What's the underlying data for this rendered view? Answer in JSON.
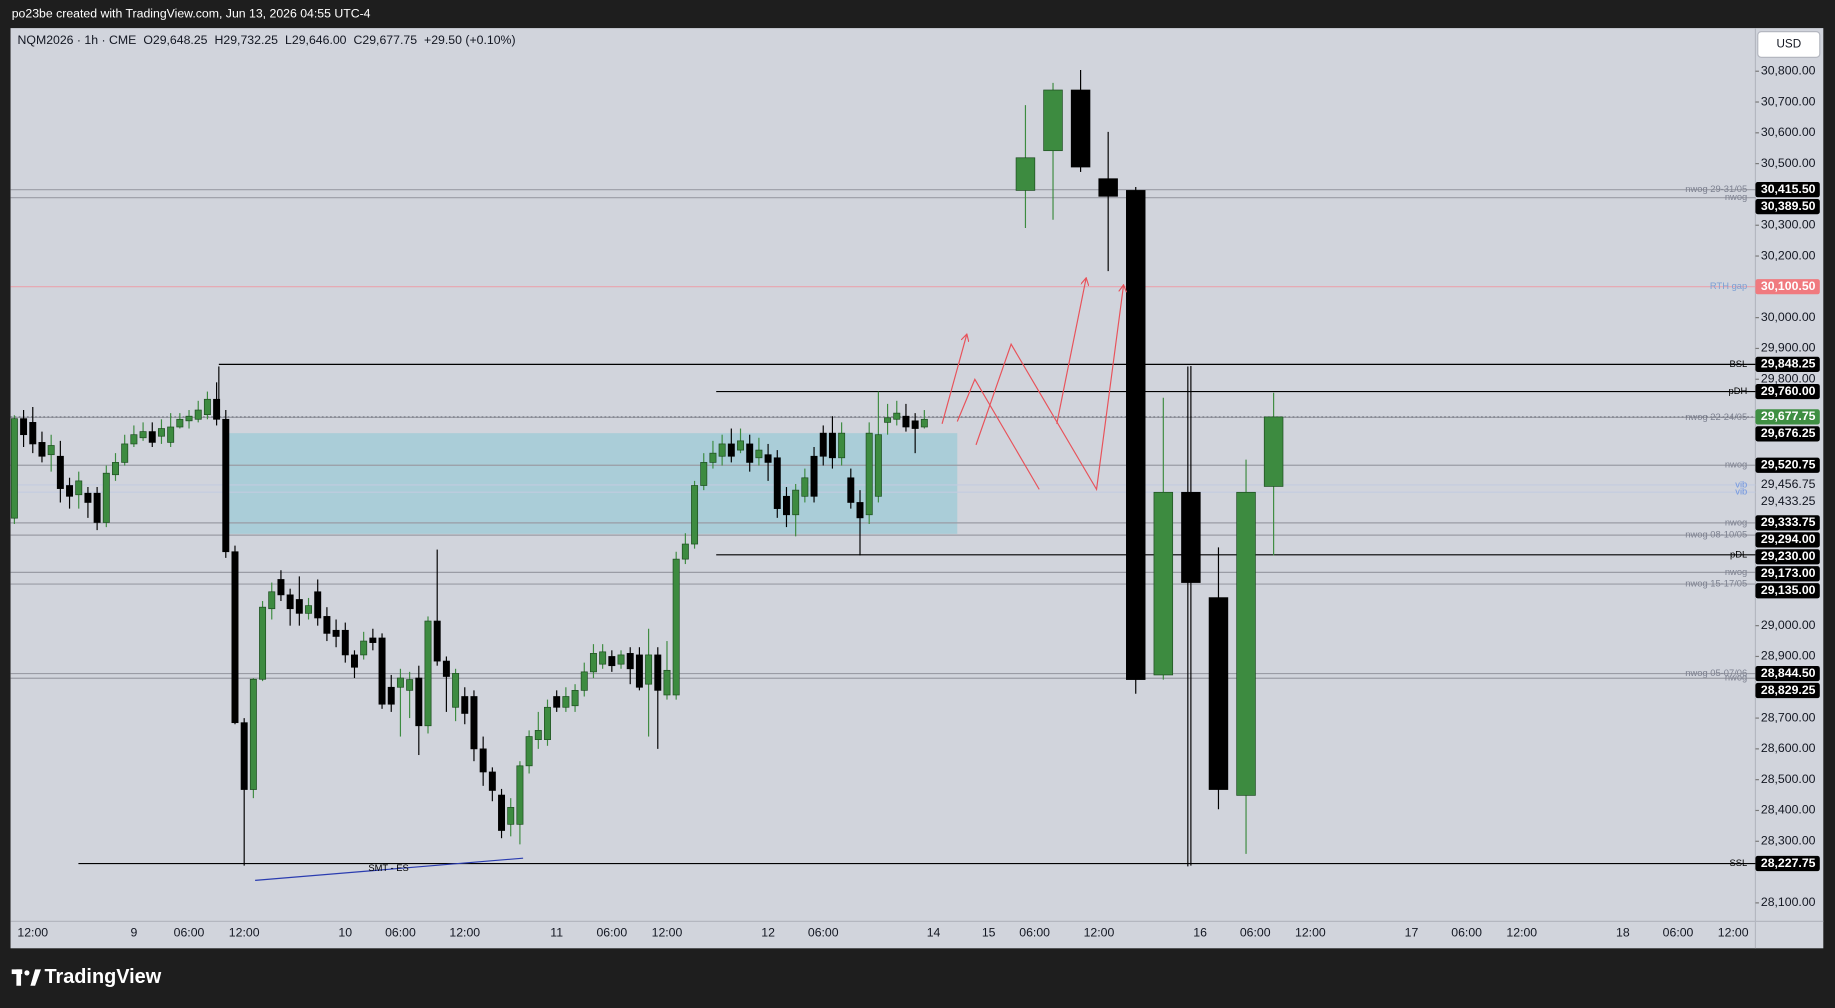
{
  "page": {
    "caption": "po23be created with TradingView.com, Jun 13, 2026 04:55 UTC-4",
    "brand": "TradingView",
    "currency": "USD"
  },
  "chart_data": {
    "type": "candlestick",
    "title": "NQM2026 · 1h · CME",
    "ohlc": [
      "O29,648.25",
      "H29,732.25",
      "L29,646.00",
      "C29,677.75",
      "+29.50 (+0.10%)"
    ],
    "annotations": [
      "SMT - ES"
    ],
    "up_color": "#3d8b40",
    "down_color": "#000000",
    "ylim": [
      28040,
      30940
    ],
    "yticks": [
      {
        "value": 28100,
        "label": "28,100.00"
      },
      {
        "value": 28300,
        "label": "28,300.00"
      },
      {
        "value": 28400,
        "label": "28,400.00"
      },
      {
        "value": 28500,
        "label": "28,500.00"
      },
      {
        "value": 28600,
        "label": "28,600.00"
      },
      {
        "value": 28700,
        "label": "28,700.00"
      },
      {
        "value": 28900,
        "label": "28,900.00"
      },
      {
        "value": 29000,
        "label": "29,000.00"
      },
      {
        "value": 29800,
        "label": "29,800.00"
      },
      {
        "value": 29900,
        "label": "29,900.00"
      },
      {
        "value": 30000,
        "label": "30,000.00"
      },
      {
        "value": 30200,
        "label": "30,200.00"
      },
      {
        "value": 30300,
        "label": "30,300.00"
      },
      {
        "value": 30500,
        "label": "30,500.00"
      },
      {
        "value": 30600,
        "label": "30,600.00"
      },
      {
        "value": 30700,
        "label": "30,700.00"
      },
      {
        "value": 30800,
        "label": "30,800.00"
      }
    ],
    "last_price": {
      "value": 29677.75,
      "label": "29,677.75",
      "box": "#3f8f43"
    },
    "levels": [
      {
        "name": "nwog 29-31/05",
        "value": 30415.5,
        "label": "30,415.50",
        "color": "#9a9ca5",
        "text_color": "#7d8190",
        "box": "#000000"
      },
      {
        "name": "nwog",
        "value": 30389.5,
        "label": "30,389.50",
        "color": "#9a9ca5",
        "text_color": "#7d8190",
        "box": "#000000"
      },
      {
        "name": "RTH gap",
        "value": 30100.5,
        "label": "30,100.50",
        "color": "#e8a4ae",
        "text_color": "#7b9fd4",
        "box": "#f07a7f"
      },
      {
        "name": "BSL",
        "value": 29848.25,
        "label": "29,848.25",
        "color": "#000000",
        "text_color": "#000000",
        "box": "#000000"
      },
      {
        "name": "pDH",
        "value": 29760,
        "label": "29,760.00",
        "color": "#000000",
        "text_color": "#000000",
        "box": "#000000"
      },
      {
        "name": "nwog 22-24/05",
        "value": 29676.25,
        "label": "29,676.25",
        "color": "#9a9ca5",
        "text_color": "#7d8190",
        "box": "#000000"
      },
      {
        "name": "nwog",
        "value": 29520.75,
        "label": "29,520.75",
        "color": "#9a9ca5",
        "text_color": "#7d8190",
        "box": "#000000"
      },
      {
        "name": "vib",
        "value": 29456.75,
        "label": "29,456.75",
        "color": "#c2cbe0",
        "text_color": "#6f95e0"
      },
      {
        "name": "vib",
        "value": 29433.25,
        "label": "29,433.25",
        "color": "#c2cbe0",
        "text_color": "#6f95e0"
      },
      {
        "name": "nwog",
        "value": 29333.75,
        "label": "29,333.75",
        "color": "#9a9ca5",
        "text_color": "#7d8190",
        "box": "#000000"
      },
      {
        "name": "nwog 08-10/05",
        "value": 29294,
        "label": "29,294.00",
        "color": "#9a9ca5",
        "text_color": "#7d8190",
        "box": "#000000"
      },
      {
        "name": "pDL",
        "value": 29230,
        "label": "29,230.00",
        "color": "#000000",
        "text_color": "#000000",
        "box": "#000000"
      },
      {
        "name": "nwog",
        "value": 29173,
        "label": "29,173.00",
        "color": "#9a9ca5",
        "text_color": "#7d8190",
        "box": "#000000"
      },
      {
        "name": "nwog 15-17/05",
        "value": 29135,
        "label": "29,135.00",
        "color": "#9a9ca5",
        "text_color": "#7d8190",
        "box": "#000000"
      },
      {
        "name": "nwog 05-07/06",
        "value": 28844.5,
        "label": "28,844.50",
        "color": "#9a9ca5",
        "text_color": "#7d8190",
        "box": "#000000"
      },
      {
        "name": "nwog",
        "value": 28829.25,
        "label": "28,829.25",
        "color": "#9a9ca5",
        "text_color": "#7d8190",
        "box": "#000000"
      },
      {
        "name": "SSL",
        "value": 28227.75,
        "label": "28,227.75",
        "color": "#000000",
        "text_color": "#000000",
        "box": "#000000"
      }
    ],
    "categories": [
      null,
      null,
      "12:00",
      null,
      null,
      null,
      null,
      null,
      null,
      null,
      null,
      null,
      null,
      "9",
      null,
      null,
      null,
      null,
      null,
      "06:00",
      null,
      null,
      null,
      null,
      null,
      "12:00",
      null,
      null,
      null,
      null,
      null,
      null,
      null,
      null,
      null,
      null,
      "10",
      null,
      null,
      null,
      null,
      null,
      "06:00",
      null,
      null,
      null,
      null,
      null,
      null,
      "12:00",
      null,
      null,
      null,
      null,
      null,
      null,
      null,
      null,
      null,
      "11",
      null,
      null,
      null,
      null,
      null,
      "06:00",
      null,
      null,
      null,
      null,
      null,
      "12:00",
      null,
      null,
      null,
      null,
      null,
      null,
      null,
      null,
      null,
      null,
      "12",
      null,
      null,
      null,
      null,
      null,
      "06:00",
      null,
      null,
      null,
      null,
      null,
      null,
      null,
      null,
      null,
      null,
      null,
      "14",
      null,
      null,
      null,
      null,
      null,
      "15",
      null,
      null,
      null,
      null,
      "06:00",
      null,
      null,
      null,
      null,
      null,
      null,
      "12:00",
      null,
      null,
      null,
      null,
      null,
      null,
      null,
      null,
      null,
      null,
      "16",
      null,
      null,
      null,
      null,
      null,
      "06:00",
      null,
      null,
      null,
      null,
      null,
      "12:00",
      null,
      null,
      null,
      null,
      null,
      null,
      null,
      null,
      null,
      null,
      "17",
      null,
      null,
      null,
      null,
      null,
      "06:00",
      null,
      null,
      null,
      null,
      null,
      "12:00",
      null,
      null,
      null,
      null,
      null,
      null,
      null,
      null,
      null,
      null,
      "18",
      null,
      null,
      null,
      null,
      null,
      "06:00",
      null,
      null,
      null,
      null,
      null,
      "12:00",
      null,
      null
    ],
    "open": [
      29349,
      29672,
      29660,
      29595,
      29555,
      29550,
      29455,
      29425,
      29430,
      29430,
      29335,
      29490,
      29530,
      29590,
      29610,
      29630,
      29615,
      29595,
      29645,
      29665,
      29670,
      29685,
      29735,
      29670,
      29240,
      28685,
      28468,
      28826,
      29055,
      29150,
      29100,
      29085,
      29040,
      29110,
      29030,
      28985,
      28985,
      28905,
      28905,
      28960,
      28960,
      28800,
      28800,
      28790,
      28830,
      28675,
      29015,
      28885,
      28735,
      28770,
      28770,
      28600,
      28525,
      28450,
      28355,
      28355,
      28545,
      28630,
      28630,
      28770,
      28735,
      28740,
      28790,
      28850,
      28875,
      28900,
      28875,
      28910,
      28905,
      28810,
      28905,
      28775,
      28775,
      29216,
      29265,
      29455,
      29530,
      29550,
      29590,
      29570,
      29590,
      29545,
      29555,
      29545,
      29420,
      29360,
      29420,
      29550,
      29625,
      29625,
      29545,
      29480,
      29400,
      29360,
      29420,
      29660,
      29670,
      29680,
      29665,
      29645,
      null,
      null,
      null,
      null,
      null,
      null,
      null,
      null,
      null,
      null,
      30413,
      null,
      null,
      30542,
      null,
      null,
      30739,
      null,
      null,
      30451,
      null,
      null,
      30413,
      null,
      null,
      28840,
      null,
      null,
      29433,
      null,
      null,
      29091,
      null,
      null,
      28449,
      null,
      null,
      29452,
      null,
      null,
      null,
      null,
      null,
      null,
      null,
      null,
      null,
      null,
      null,
      null,
      null,
      null,
      null,
      null,
      null,
      null,
      null,
      null,
      null,
      null,
      null,
      null,
      null,
      null,
      null,
      null,
      null,
      null,
      null,
      null,
      null,
      null,
      null,
      null,
      null,
      null,
      null,
      null,
      null,
      null,
      null,
      null,
      null,
      null,
      null,
      null,
      null,
      null,
      null,
      null
    ],
    "high": [
      29683,
      29700,
      29710,
      29630,
      29620,
      29600,
      29480,
      29500,
      29450,
      29450,
      29520,
      29560,
      29620,
      29650,
      29660,
      29660,
      29670,
      29690,
      29690,
      29700,
      29730,
      29760,
      29790,
      29700,
      29260,
      28700,
      28830,
      29080,
      29140,
      29180,
      29120,
      29160,
      29090,
      29150,
      29060,
      29020,
      29010,
      28920,
      28980,
      28990,
      28975,
      28840,
      28860,
      28850,
      28870,
      29030,
      29247,
      28900,
      28860,
      28800,
      28790,
      28640,
      28540,
      28470,
      28440,
      28560,
      28660,
      28720,
      28760,
      28790,
      28800,
      28810,
      28880,
      28940,
      28940,
      28920,
      28920,
      28930,
      28930,
      28990,
      28930,
      28950,
      29240,
      29300,
      29470,
      29560,
      29600,
      29620,
      29640,
      29640,
      29620,
      29610,
      29590,
      29570,
      29450,
      29460,
      29510,
      29580,
      29650,
      29680,
      29660,
      29510,
      29440,
      29660,
      29760,
      29720,
      29730,
      29720,
      29690,
      29700,
      null,
      null,
      null,
      null,
      null,
      null,
      null,
      null,
      null,
      null,
      30690,
      null,
      null,
      30762,
      null,
      null,
      30804,
      null,
      null,
      30603,
      null,
      null,
      30424,
      null,
      null,
      29740,
      null,
      null,
      29843,
      null,
      null,
      29254,
      null,
      null,
      29539,
      null,
      null,
      29756,
      null,
      null,
      null,
      null,
      null,
      null,
      null,
      null,
      null,
      null,
      null,
      null,
      null,
      null,
      null,
      null,
      null,
      null,
      null,
      null,
      null,
      null,
      null,
      null,
      null,
      null,
      null,
      null,
      null,
      null,
      null,
      null,
      null,
      null,
      null,
      null,
      null,
      null,
      null,
      null,
      null,
      null,
      null,
      null,
      null,
      null,
      null,
      null,
      null,
      null,
      null,
      null
    ],
    "low": [
      29330,
      29580,
      29560,
      29530,
      29500,
      29400,
      29380,
      29380,
      29350,
      29310,
      29320,
      29470,
      29520,
      29580,
      29600,
      29580,
      29590,
      29580,
      29640,
      29640,
      29660,
      29670,
      29650,
      29220,
      28680,
      28221,
      28440,
      28820,
      29020,
      29080,
      29000,
      29000,
      29020,
      29000,
      28950,
      28930,
      28880,
      28830,
      28890,
      28920,
      28730,
      28720,
      28640,
      28700,
      28580,
      28650,
      28870,
      28720,
      28690,
      28680,
      28560,
      28480,
      28430,
      28310,
      28316,
      28290,
      28520,
      28600,
      28610,
      28720,
      28720,
      28720,
      28770,
      28830,
      28860,
      28850,
      28860,
      28810,
      28790,
      28640,
      28600,
      28760,
      28760,
      29200,
      29250,
      29440,
      29510,
      29520,
      29530,
      29560,
      29500,
      29520,
      29470,
      29350,
      29320,
      29290,
      29400,
      29400,
      29520,
      29510,
      29520,
      29380,
      29228,
      29330,
      29400,
      29620,
      29650,
      29630,
      29560,
      29640,
      null,
      null,
      null,
      null,
      null,
      null,
      null,
      null,
      null,
      null,
      30291,
      null,
      null,
      30318,
      null,
      null,
      30473,
      null,
      null,
      30151,
      null,
      null,
      28779,
      null,
      null,
      28825,
      null,
      null,
      28221,
      null,
      null,
      28404,
      null,
      null,
      28259,
      null,
      null,
      29228,
      null,
      null,
      null,
      null,
      null,
      null,
      null,
      null,
      null,
      null,
      null,
      null,
      null,
      null,
      null,
      null,
      null,
      null,
      null,
      null,
      null,
      null,
      null,
      null,
      null,
      null,
      null,
      null,
      null,
      null,
      null,
      null,
      null,
      null,
      null,
      null,
      null,
      null,
      null,
      null,
      null,
      null,
      null,
      null,
      null,
      null,
      null,
      null,
      null,
      null,
      null,
      null
    ],
    "close": [
      29672,
      29620,
      29590,
      29550,
      29585,
      29445,
      29420,
      29470,
      29400,
      29335,
      29495,
      29530,
      29590,
      29620,
      29630,
      29595,
      29640,
      29645,
      29670,
      29680,
      29700,
      29735,
      29670,
      29240,
      28685,
      28468,
      28826,
      29060,
      29110,
      29100,
      29055,
      29040,
      29065,
      29025,
      28975,
      28965,
      28905,
      28865,
      28950,
      28945,
      28745,
      28745,
      28830,
      28825,
      28675,
      29015,
      28885,
      28835,
      28845,
      28715,
      28600,
      28525,
      28465,
      28335,
      28410,
      28545,
      28640,
      28660,
      28735,
      28735,
      28770,
      28790,
      28850,
      28910,
      28915,
      28870,
      28905,
      28860,
      28800,
      28905,
      28790,
      28855,
      29216,
      29265,
      29455,
      29530,
      29560,
      29590,
      29550,
      29600,
      29530,
      29570,
      29530,
      29380,
      29360,
      29440,
      29480,
      29420,
      29550,
      29545,
      29625,
      29400,
      29350,
      29625,
      29620,
      29675,
      29690,
      29645,
      29640,
      29670,
      null,
      null,
      null,
      null,
      null,
      null,
      null,
      null,
      null,
      null,
      30519,
      null,
      null,
      30739,
      null,
      null,
      30489,
      null,
      null,
      30394,
      null,
      null,
      28825,
      null,
      null,
      29433,
      null,
      null,
      29140,
      null,
      null,
      28468,
      null,
      null,
      29433,
      null,
      null,
      29677.75,
      null,
      null,
      null,
      null,
      null,
      null,
      null,
      null,
      null,
      null,
      null,
      null,
      null,
      null,
      null,
      null,
      null,
      null,
      null,
      null,
      null,
      null,
      null,
      null,
      null,
      null,
      null,
      null,
      null,
      null,
      null,
      null,
      null,
      null,
      null,
      null,
      null,
      null,
      null,
      null,
      null,
      null,
      null,
      null,
      null,
      null,
      null,
      null,
      null,
      null,
      null,
      null
    ]
  }
}
